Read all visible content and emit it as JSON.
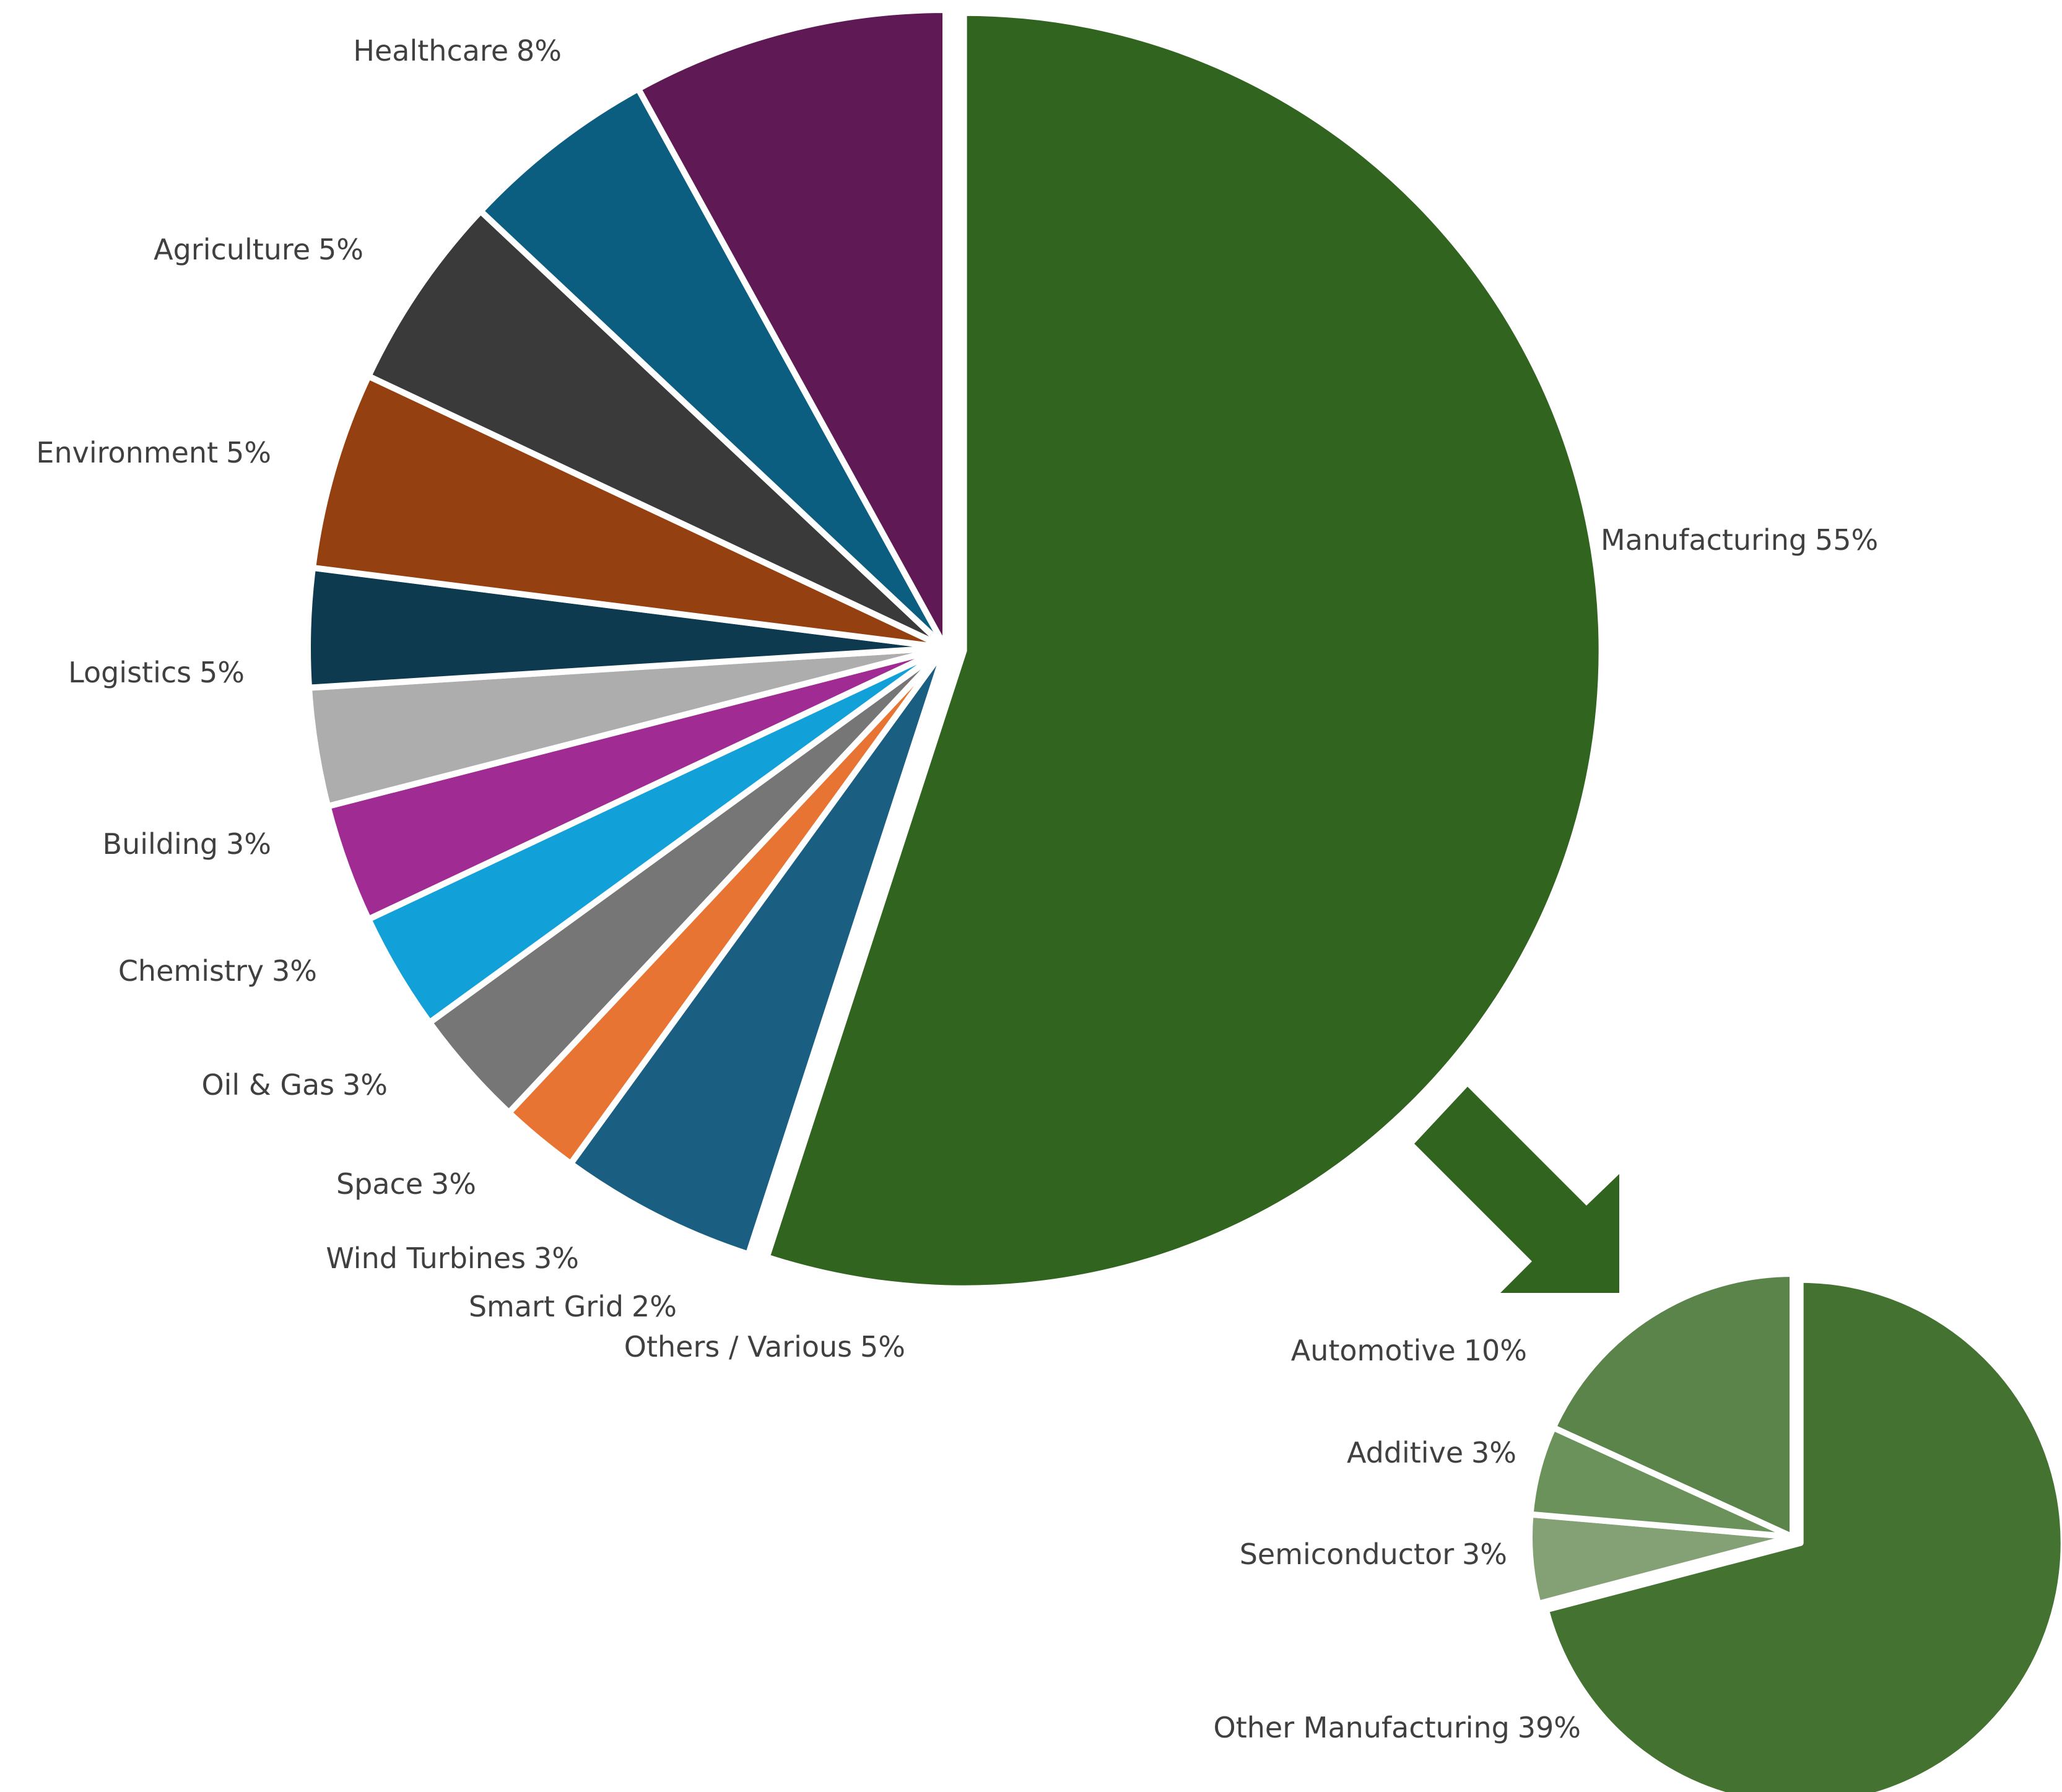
{
  "chart_data": [
    {
      "type": "pie",
      "categories": [
        "Manufacturing",
        "Others / Various",
        "Smart Grid",
        "Wind Turbines",
        "Space",
        "Oil & Gas",
        "Chemistry",
        "Building",
        "Logistics",
        "Environment",
        "Agriculture",
        "Healthcare"
      ],
      "values": [
        55,
        5,
        2,
        3,
        3,
        3,
        3,
        3,
        5,
        5,
        5,
        8
      ],
      "value_labels": [
        "55%",
        "5%",
        "2%",
        "3%",
        "3%",
        "3%",
        "3%",
        "3%",
        "5%",
        "5%",
        "5%",
        "8%"
      ],
      "colors": [
        "#31641e",
        "#1a5f82",
        "#e87434",
        "#767676",
        "#12a0d8",
        "#a02b93",
        "#adadad",
        "#0e3a50",
        "#954011",
        "#3a3a3a",
        "#0b5e80",
        "#5f1a56"
      ]
    },
    {
      "type": "pie",
      "categories": [
        "Other Manufacturing",
        "Semiconductor",
        "Additive",
        "Automotive"
      ],
      "values": [
        39,
        3,
        3,
        10
      ],
      "value_labels": [
        "39%",
        "3%",
        "3%",
        "10%"
      ],
      "colors": [
        "#437231",
        "#84a176",
        "#6c925b",
        "#5a8449"
      ]
    }
  ]
}
